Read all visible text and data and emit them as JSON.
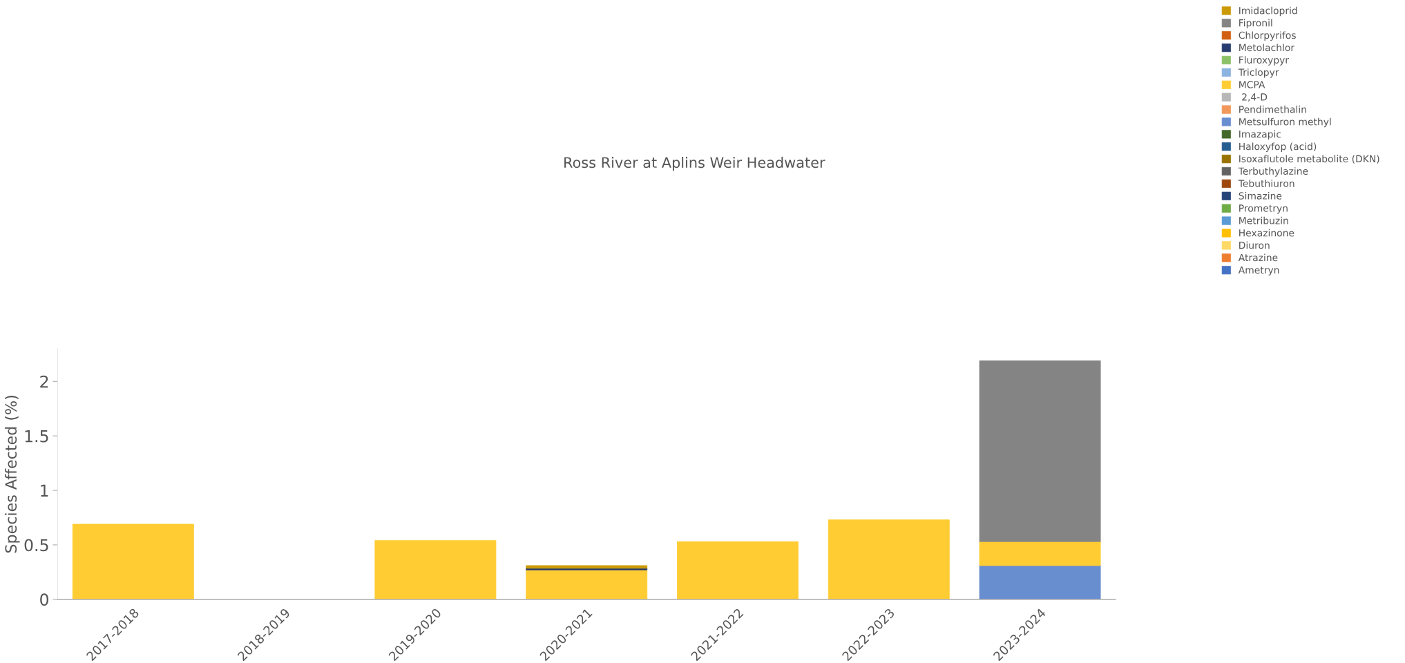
{
  "chart_data": {
    "type": "bar",
    "title": "Ross River at Aplins Weir Headwater",
    "ylabel": "Species Affected (%)",
    "categories": [
      "2017-2018",
      "2018-2019",
      "2019-2020",
      "2020-2021",
      "2021-2022",
      "2022-2023",
      "2023-2024"
    ],
    "stacked": true,
    "ylim": [
      0,
      2.3
    ],
    "yticks": [
      0,
      0.5,
      1,
      1.5,
      2
    ],
    "grid": false,
    "legend": "top right",
    "series": [
      {
        "name": "Ametryn",
        "color": "#4472c4",
        "values": [
          null,
          null,
          null,
          null,
          null,
          null,
          null
        ]
      },
      {
        "name": "Atrazine",
        "color": "#ed7d31",
        "values": [
          null,
          null,
          null,
          null,
          null,
          null,
          null
        ]
      },
      {
        "name": "Diuron",
        "color": "#ffd966",
        "values": [
          null,
          null,
          null,
          null,
          null,
          null,
          null
        ]
      },
      {
        "name": "Hexazinone",
        "color": "#ffc000",
        "values": [
          null,
          null,
          null,
          null,
          null,
          null,
          null
        ]
      },
      {
        "name": "Metribuzin",
        "color": "#5b9bd5",
        "values": [
          null,
          null,
          null,
          null,
          null,
          null,
          null
        ]
      },
      {
        "name": "Prometryn",
        "color": "#70ad47",
        "values": [
          null,
          null,
          null,
          null,
          null,
          null,
          null
        ]
      },
      {
        "name": "Simazine",
        "color": "#264478",
        "values": [
          null,
          null,
          null,
          null,
          null,
          null,
          null
        ]
      },
      {
        "name": "Tebuthiuron",
        "color": "#9e480e",
        "values": [
          null,
          null,
          null,
          null,
          null,
          null,
          null
        ]
      },
      {
        "name": "Terbuthylazine",
        "color": "#636363",
        "values": [
          null,
          null,
          null,
          null,
          null,
          null,
          null
        ]
      },
      {
        "name": "Isoxaflutole metabolite (DKN)",
        "color": "#997300",
        "values": [
          null,
          null,
          null,
          null,
          null,
          null,
          null
        ]
      },
      {
        "name": "Haloxyfop (acid)",
        "color": "#255e91",
        "values": [
          null,
          null,
          null,
          null,
          null,
          null,
          null
        ]
      },
      {
        "name": "Imazapic",
        "color": "#43682b",
        "values": [
          null,
          null,
          null,
          null,
          null,
          null,
          null
        ]
      },
      {
        "name": "Metsulfuron methyl",
        "color": "#698ed0",
        "values": [
          null,
          null,
          null,
          null,
          null,
          null,
          0.31
        ]
      },
      {
        "name": "Pendimethalin",
        "color": "#f1975a",
        "values": [
          null,
          null,
          null,
          null,
          null,
          null,
          null
        ]
      },
      {
        "name": " 2,4-D",
        "color": "#b7b7b7",
        "values": [
          null,
          null,
          null,
          null,
          null,
          null,
          null
        ]
      },
      {
        "name": "MCPA",
        "color": "#ffcd33",
        "values": [
          0.69,
          null,
          0.54,
          0.27,
          0.53,
          0.73,
          0.22
        ]
      },
      {
        "name": "Triclopyr",
        "color": "#8cb4e0",
        "values": [
          null,
          null,
          null,
          null,
          null,
          null,
          null
        ]
      },
      {
        "name": "Fluroxypyr",
        "color": "#8cc168",
        "values": [
          null,
          null,
          null,
          null,
          null,
          null,
          null
        ]
      },
      {
        "name": "Metolachlor",
        "color": "#263c6e",
        "values": [
          null,
          null,
          null,
          0.015,
          null,
          null,
          null
        ]
      },
      {
        "name": "Chlorpyrifos",
        "color": "#d26012",
        "values": [
          null,
          null,
          null,
          null,
          null,
          null,
          null
        ]
      },
      {
        "name": "Fipronil",
        "color": "#848484",
        "values": [
          null,
          null,
          null,
          null,
          null,
          null,
          1.66
        ]
      },
      {
        "name": "Imidacloprid",
        "color": "#cc9a06",
        "values": [
          null,
          null,
          null,
          0.025,
          null,
          null,
          null
        ]
      }
    ]
  }
}
